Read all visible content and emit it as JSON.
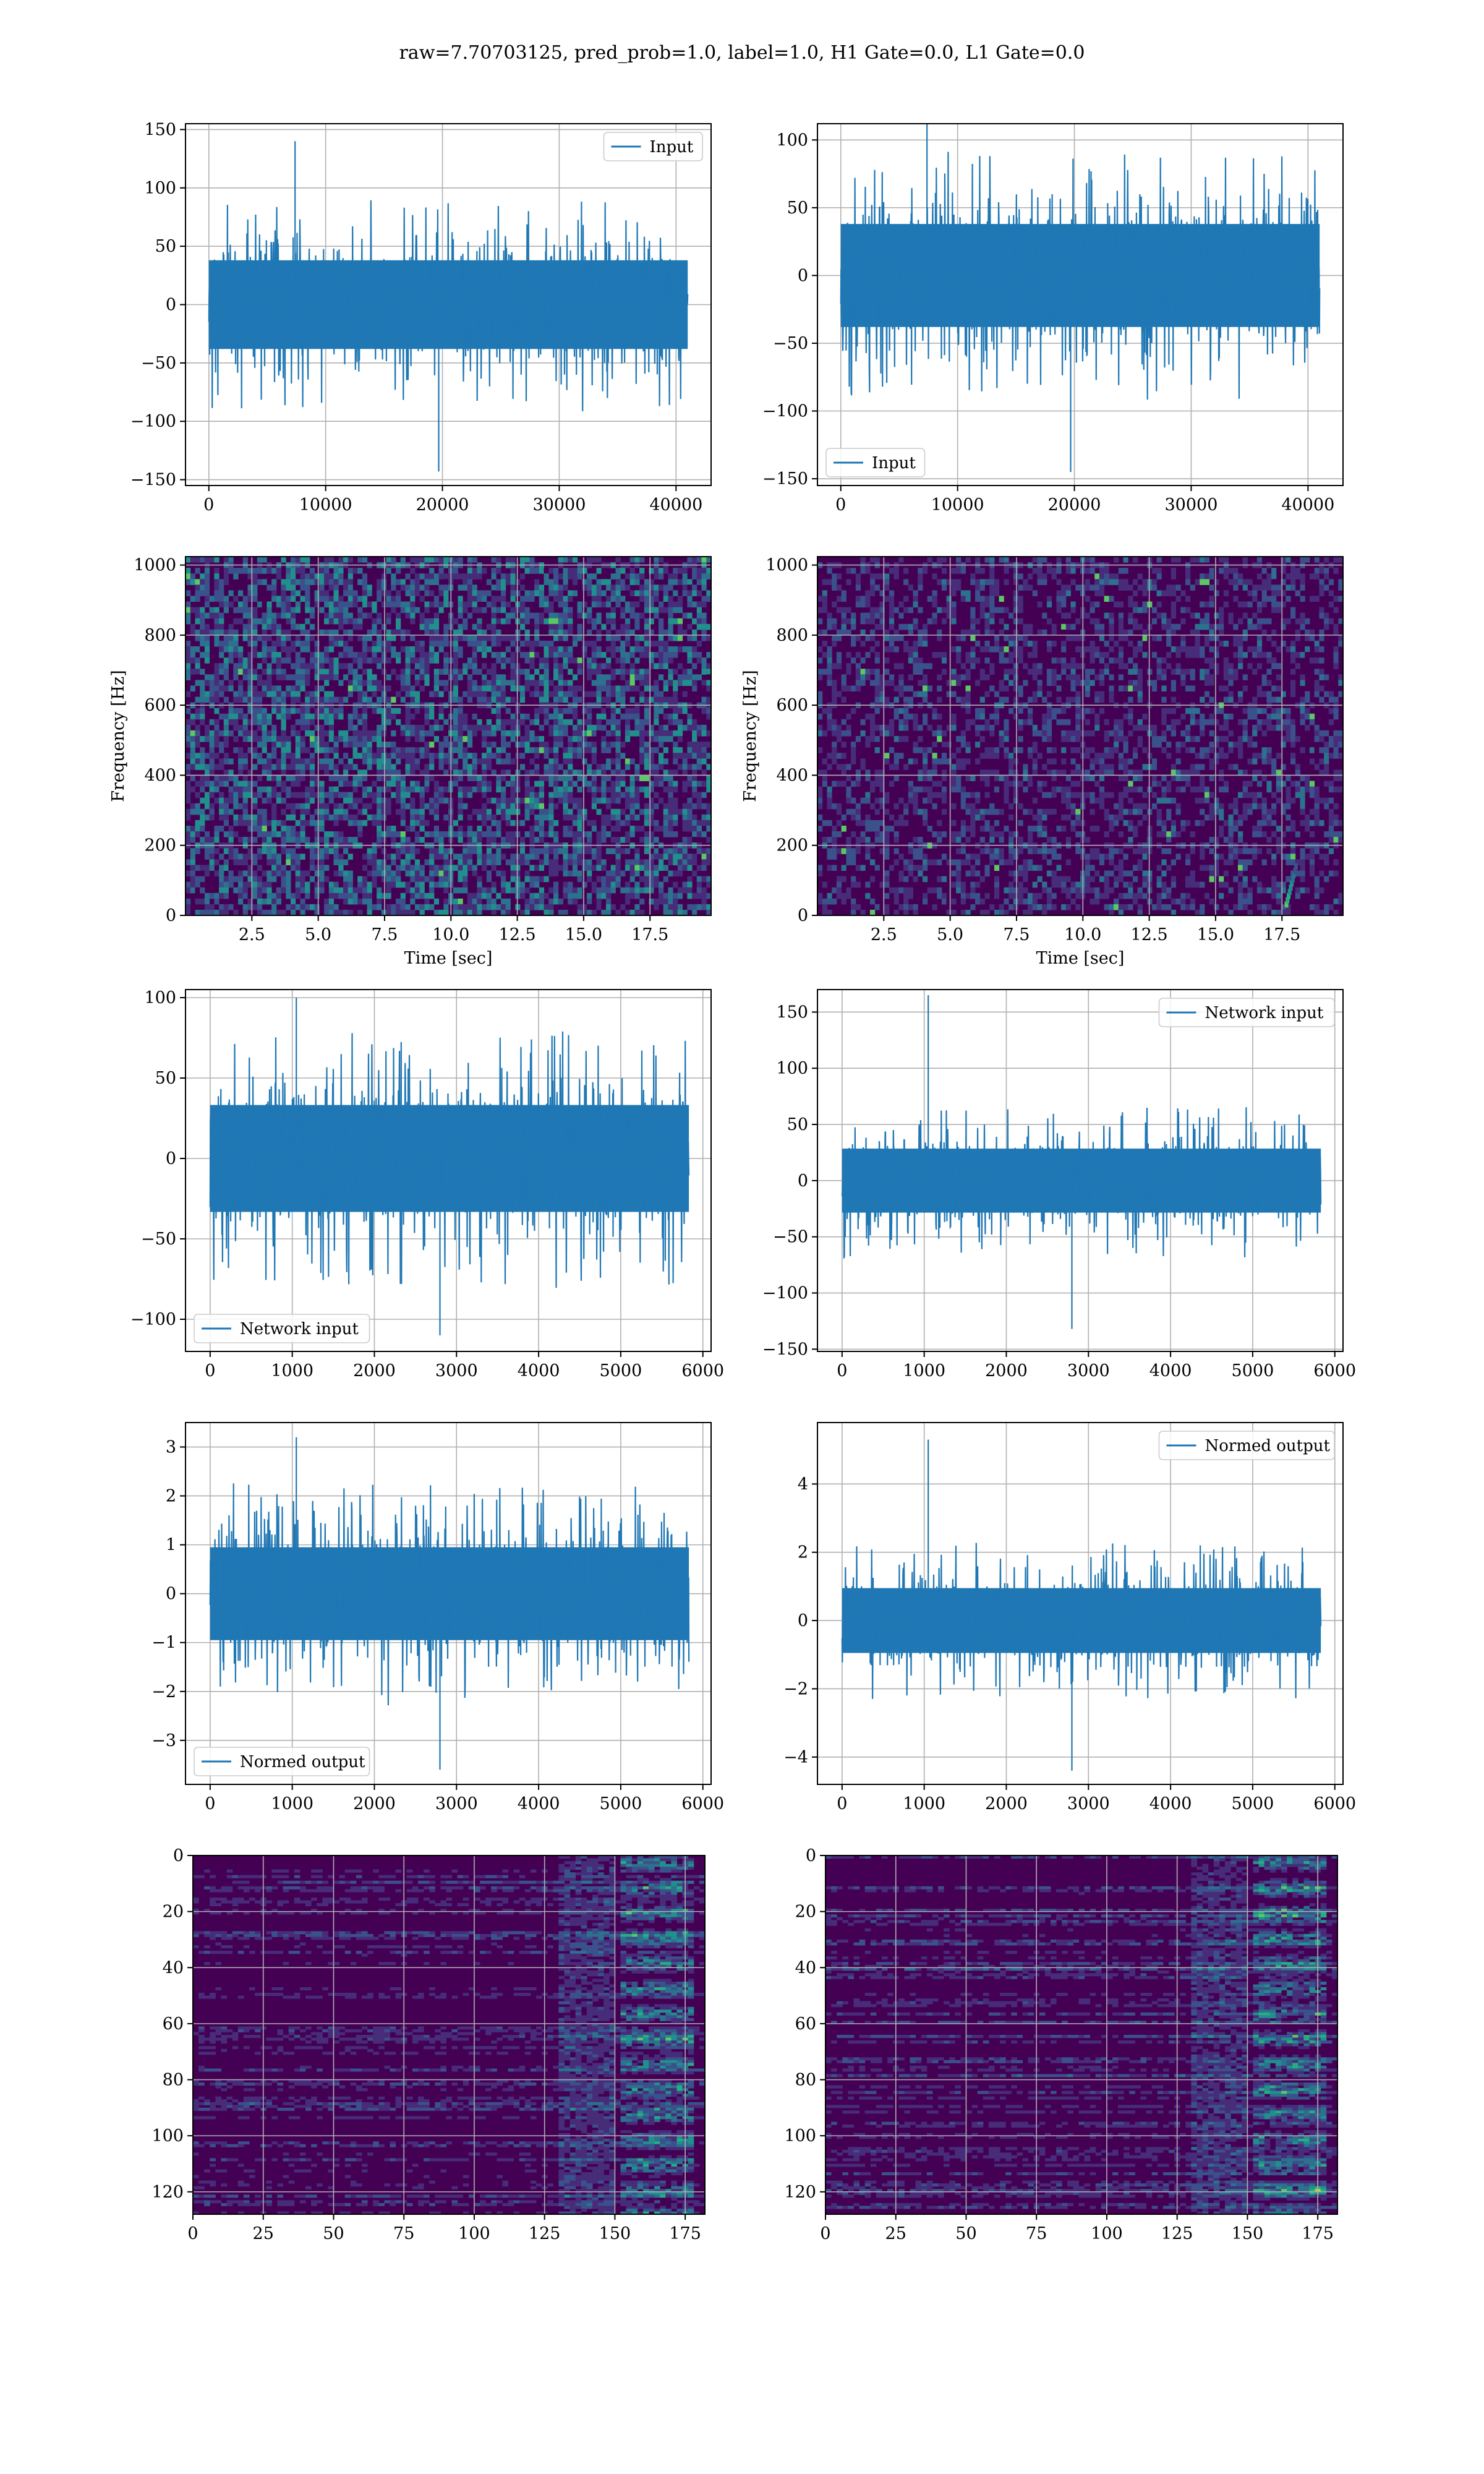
{
  "figure_title": "raw=7.70703125, pred_prob=1.0, label=1.0, H1 Gate=0.0, L1 Gate=0.0",
  "colors": {
    "series": "#1f77b4",
    "grid": "#b0b0b0",
    "frame": "#000000",
    "viridis": [
      "#440154",
      "#472c7a",
      "#3b518b",
      "#2c718e",
      "#21908d",
      "#27ad81",
      "#5cc863",
      "#aadc32",
      "#fde725"
    ]
  },
  "chart_data": [
    {
      "id": "input-h1",
      "type": "line",
      "series": [
        {
          "name": "Input"
        }
      ],
      "legend": "upper right",
      "grid": true,
      "xlim": [
        -2000,
        43000
      ],
      "ylim": [
        -155,
        155
      ],
      "xticks": [
        0,
        10000,
        20000,
        30000,
        40000
      ],
      "xtick_labels": [
        "0",
        "10000",
        "20000",
        "30000",
        "40000"
      ],
      "yticks": [
        -150,
        -100,
        -50,
        0,
        50,
        100,
        150
      ],
      "ytick_labels": [
        "−150",
        "−100",
        "−50",
        "0",
        "50",
        "100",
        "150"
      ],
      "signal": {
        "x_end": 41000,
        "amplitude_typical": 40,
        "amplitude_max": 140,
        "amplitude_min": -143
      }
    },
    {
      "id": "input-l1",
      "type": "line",
      "series": [
        {
          "name": "Input"
        }
      ],
      "legend": "lower left",
      "grid": true,
      "xlim": [
        -2000,
        43000
      ],
      "ylim": [
        -155,
        112
      ],
      "xticks": [
        0,
        10000,
        20000,
        30000,
        40000
      ],
      "xtick_labels": [
        "0",
        "10000",
        "20000",
        "30000",
        "40000"
      ],
      "yticks": [
        -150,
        -100,
        -50,
        0,
        50,
        100
      ],
      "ytick_labels": [
        "−150",
        "−100",
        "−50",
        "0",
        "50",
        "100"
      ],
      "signal": {
        "x_end": 41000,
        "amplitude_typical": 40,
        "amplitude_max": 118,
        "amplitude_min": -145
      }
    },
    {
      "id": "spectrogram-h1",
      "type": "heatmap",
      "xlabel": "Time [sec]",
      "ylabel": "Frequency [Hz]",
      "grid": true,
      "xlim": [
        0,
        19.8
      ],
      "ylim": [
        0,
        1024
      ],
      "xticks": [
        2.5,
        5.0,
        7.5,
        10.0,
        12.5,
        15.0,
        17.5
      ],
      "xtick_labels": [
        "2.5",
        "5.0",
        "7.5",
        "10.0",
        "12.5",
        "15.0",
        "17.5"
      ],
      "yticks": [
        0,
        200,
        400,
        600,
        800,
        1000
      ],
      "ytick_labels": [
        "0",
        "200",
        "400",
        "600",
        "800",
        "1000"
      ]
    },
    {
      "id": "spectrogram-l1",
      "type": "heatmap",
      "xlabel": "Time [sec]",
      "ylabel": "Frequency [Hz]",
      "grid": true,
      "xlim": [
        0,
        19.8
      ],
      "ylim": [
        0,
        1024
      ],
      "xticks": [
        2.5,
        5.0,
        7.5,
        10.0,
        12.5,
        15.0,
        17.5
      ],
      "xtick_labels": [
        "2.5",
        "5.0",
        "7.5",
        "10.0",
        "12.5",
        "15.0",
        "17.5"
      ],
      "yticks": [
        0,
        200,
        400,
        600,
        800,
        1000
      ],
      "ytick_labels": [
        "0",
        "200",
        "400",
        "600",
        "800",
        "1000"
      ]
    },
    {
      "id": "network-input-h1",
      "type": "line",
      "series": [
        {
          "name": "Network input"
        }
      ],
      "legend": "lower left",
      "grid": true,
      "xlim": [
        -300,
        6100
      ],
      "ylim": [
        -120,
        105
      ],
      "xticks": [
        0,
        1000,
        2000,
        3000,
        4000,
        5000,
        6000
      ],
      "xtick_labels": [
        "0",
        "1000",
        "2000",
        "3000",
        "4000",
        "5000",
        "6000"
      ],
      "yticks": [
        -100,
        -50,
        0,
        50,
        100
      ],
      "ytick_labels": [
        "−100",
        "−50",
        "0",
        "50",
        "100"
      ],
      "signal": {
        "x_end": 5830,
        "amplitude_typical": 35,
        "amplitude_max": 100,
        "amplitude_min": -110
      }
    },
    {
      "id": "network-input-l1",
      "type": "line",
      "series": [
        {
          "name": "Network input"
        }
      ],
      "legend": "upper right",
      "grid": true,
      "xlim": [
        -300,
        6100
      ],
      "ylim": [
        -152,
        170
      ],
      "xticks": [
        0,
        1000,
        2000,
        3000,
        4000,
        5000,
        6000
      ],
      "xtick_labels": [
        "0",
        "1000",
        "2000",
        "3000",
        "4000",
        "5000",
        "6000"
      ],
      "yticks": [
        -150,
        -100,
        -50,
        0,
        50,
        100,
        150
      ],
      "ytick_labels": [
        "−150",
        "−100",
        "−50",
        "0",
        "50",
        "100",
        "150"
      ],
      "signal": {
        "x_end": 5830,
        "amplitude_typical": 30,
        "amplitude_max": 165,
        "amplitude_min": -132
      }
    },
    {
      "id": "normed-output-h1",
      "type": "line",
      "series": [
        {
          "name": "Normed output"
        }
      ],
      "legend": "lower left",
      "grid": true,
      "xlim": [
        -300,
        6100
      ],
      "ylim": [
        -3.9,
        3.5
      ],
      "xticks": [
        0,
        1000,
        2000,
        3000,
        4000,
        5000,
        6000
      ],
      "xtick_labels": [
        "0",
        "1000",
        "2000",
        "3000",
        "4000",
        "5000",
        "6000"
      ],
      "yticks": [
        -3,
        -2,
        -1,
        0,
        1,
        2,
        3
      ],
      "ytick_labels": [
        "−3",
        "−2",
        "−1",
        "0",
        "1",
        "2",
        "3"
      ],
      "signal": {
        "x_end": 5830,
        "amplitude_typical": 1.0,
        "amplitude_max": 3.2,
        "amplitude_min": -3.6
      }
    },
    {
      "id": "normed-output-l1",
      "type": "line",
      "series": [
        {
          "name": "Normed output"
        }
      ],
      "legend": "upper right",
      "grid": true,
      "xlim": [
        -300,
        6100
      ],
      "ylim": [
        -4.8,
        5.8
      ],
      "xticks": [
        0,
        1000,
        2000,
        3000,
        4000,
        5000,
        6000
      ],
      "xtick_labels": [
        "0",
        "1000",
        "2000",
        "3000",
        "4000",
        "5000",
        "6000"
      ],
      "yticks": [
        -4,
        -2,
        0,
        2,
        4
      ],
      "ytick_labels": [
        "−4",
        "−2",
        "0",
        "2",
        "4"
      ],
      "signal": {
        "x_end": 5830,
        "amplitude_typical": 1.0,
        "amplitude_max": 5.3,
        "amplitude_min": -4.4
      }
    },
    {
      "id": "feature-map-h1",
      "type": "heatmap",
      "grid": true,
      "xlim": [
        0,
        182
      ],
      "ylim": [
        128,
        0
      ],
      "xticks": [
        0,
        25,
        50,
        75,
        100,
        125,
        150,
        175
      ],
      "xtick_labels": [
        "0",
        "25",
        "50",
        "75",
        "100",
        "125",
        "150",
        "175"
      ],
      "yticks": [
        0,
        20,
        40,
        60,
        80,
        100,
        120
      ],
      "ytick_labels": [
        "0",
        "20",
        "40",
        "60",
        "80",
        "100",
        "120"
      ]
    },
    {
      "id": "feature-map-l1",
      "type": "heatmap",
      "grid": true,
      "xlim": [
        0,
        182
      ],
      "ylim": [
        128,
        0
      ],
      "xticks": [
        0,
        25,
        50,
        75,
        100,
        125,
        150,
        175
      ],
      "xtick_labels": [
        "0",
        "25",
        "50",
        "75",
        "100",
        "125",
        "150",
        "175"
      ],
      "yticks": [
        0,
        20,
        40,
        60,
        80,
        100,
        120
      ],
      "ytick_labels": [
        "0",
        "20",
        "40",
        "60",
        "80",
        "100",
        "120"
      ]
    }
  ]
}
